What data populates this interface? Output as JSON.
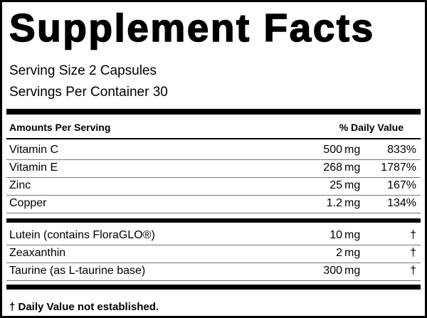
{
  "header": {
    "title": "Supplement Facts",
    "serving_size": "Serving Size 2 Capsules",
    "servings_per_container": "Servings Per Container 30"
  },
  "table": {
    "columns": {
      "amounts": "Amounts Per Serving",
      "daily_value": "% Daily Value"
    },
    "sections": [
      {
        "rows": [
          {
            "name": "Vitamin C",
            "amount": "500",
            "unit": "mg",
            "daily_value": "833%"
          },
          {
            "name": "Vitamin E",
            "amount": "268",
            "unit": "mg",
            "daily_value": "1787%"
          },
          {
            "name": "Zinc",
            "amount": "25",
            "unit": "mg",
            "daily_value": "167%"
          },
          {
            "name": "Copper",
            "amount": "1.2",
            "unit": "mg",
            "daily_value": "134%"
          }
        ]
      },
      {
        "rows": [
          {
            "name": "Lutein (contains FloraGLO®)",
            "amount": "10",
            "unit": "mg",
            "daily_value": "†"
          },
          {
            "name": "Zeaxanthin",
            "amount": "2",
            "unit": "mg",
            "daily_value": "†"
          },
          {
            "name": "Taurine (as L-taurine base)",
            "amount": "300",
            "unit": "mg",
            "daily_value": "†"
          }
        ]
      }
    ]
  },
  "footnote": "† Daily Value not established."
}
